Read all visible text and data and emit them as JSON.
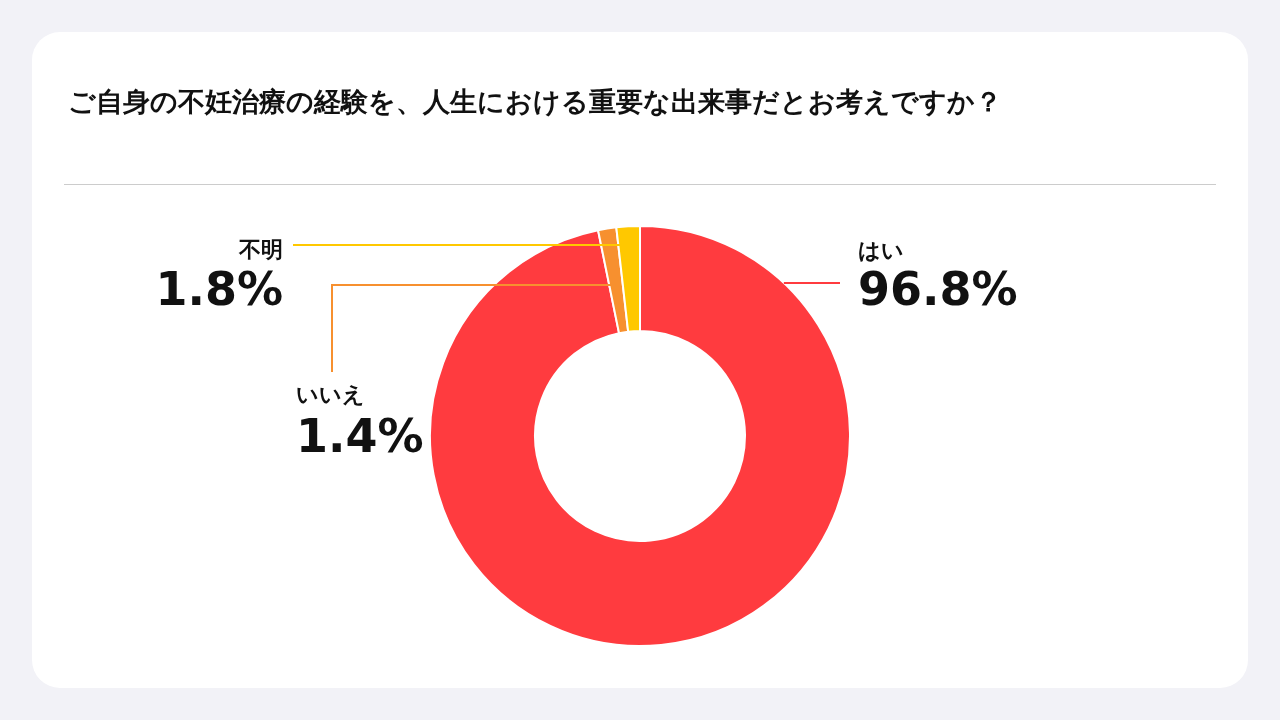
{
  "chart_data": {
    "type": "donut",
    "title": "ご自身の不妊治療の経験を、人生における重要な出来事だとお考えですか？",
    "categories": [
      "はい",
      "いいえ",
      "不明"
    ],
    "values": [
      96.8,
      1.4,
      1.8
    ],
    "colors": [
      "#ff3b3f",
      "#f7902f",
      "#ffc800"
    ],
    "value_labels": [
      "96.8%",
      "1.4%",
      "1.8%"
    ]
  }
}
